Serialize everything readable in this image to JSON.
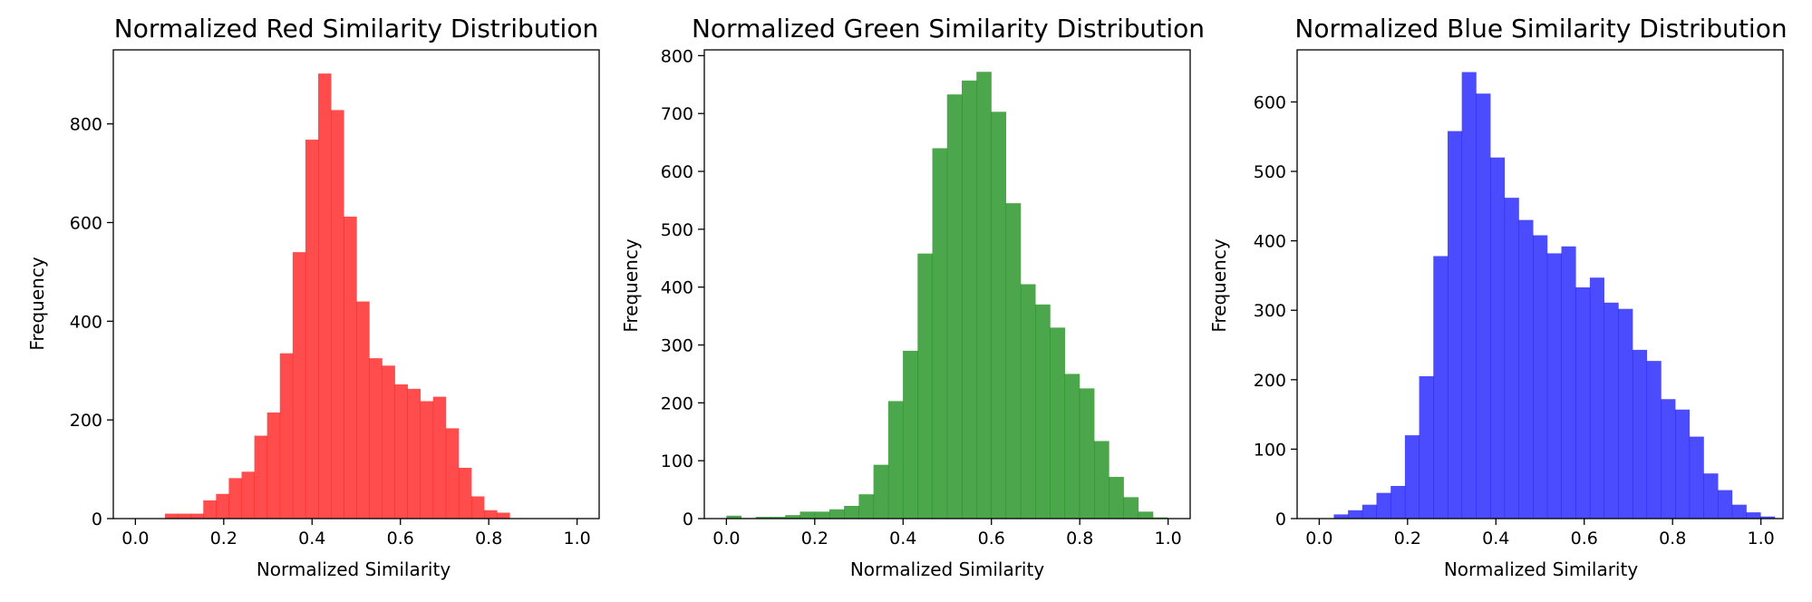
{
  "chart_data": [
    {
      "type": "bar",
      "title": "Normalized Red Similarity Distribution",
      "xlabel": "Normalized Similarity",
      "ylabel": "Frequency",
      "color": "#ff0000",
      "alpha": 0.7,
      "xlim": [
        -0.05,
        1.05
      ],
      "ylim": [
        0,
        950
      ],
      "xticks": [
        0.0,
        0.2,
        0.4,
        0.6,
        0.8,
        1.0
      ],
      "xtick_labels": [
        "0.0",
        "0.2",
        "0.4",
        "0.6",
        "0.8",
        "1.0"
      ],
      "yticks": [
        0,
        200,
        400,
        600,
        800
      ],
      "ytick_labels": [
        "0",
        "200",
        "400",
        "600",
        "800"
      ],
      "bin_start": 0.067,
      "bin_width": 0.0289,
      "values": [
        10,
        10,
        10,
        37,
        50,
        82,
        95,
        168,
        215,
        335,
        540,
        768,
        902,
        828,
        612,
        440,
        325,
        310,
        272,
        263,
        238,
        247,
        183,
        103,
        45,
        17,
        12
      ]
    },
    {
      "type": "bar",
      "title": "Normalized Green Similarity Distribution",
      "xlabel": "Normalized Similarity",
      "ylabel": "Frequency",
      "color": "#008000",
      "alpha": 0.7,
      "xlim": [
        -0.05,
        1.05
      ],
      "ylim": [
        0,
        810
      ],
      "xticks": [
        0.0,
        0.2,
        0.4,
        0.6,
        0.8,
        1.0
      ],
      "xtick_labels": [
        "0.0",
        "0.2",
        "0.4",
        "0.6",
        "0.8",
        "1.0"
      ],
      "yticks": [
        0,
        100,
        200,
        300,
        400,
        500,
        600,
        700,
        800
      ],
      "ytick_labels": [
        "0",
        "100",
        "200",
        "300",
        "400",
        "500",
        "600",
        "700",
        "800"
      ],
      "bin_start": 0.0,
      "bin_width": 0.0333,
      "values": [
        5,
        1,
        3,
        3,
        6,
        12,
        12,
        16,
        22,
        42,
        93,
        203,
        290,
        458,
        640,
        733,
        757,
        772,
        703,
        545,
        405,
        370,
        330,
        250,
        225,
        134,
        72,
        37,
        12,
        2
      ]
    },
    {
      "type": "bar",
      "title": "Normalized Blue Similarity Distribution",
      "xlabel": "Normalized Similarity",
      "ylabel": "Frequency",
      "color": "#0000ff",
      "alpha": 0.7,
      "xlim": [
        -0.05,
        1.05
      ],
      "ylim": [
        0,
        675
      ],
      "xticks": [
        0.0,
        0.2,
        0.4,
        0.6,
        0.8,
        1.0
      ],
      "xtick_labels": [
        "0.0",
        "0.2",
        "0.4",
        "0.6",
        "0.8",
        "1.0"
      ],
      "yticks": [
        0,
        100,
        200,
        300,
        400,
        500,
        600
      ],
      "ytick_labels": [
        "0",
        "100",
        "200",
        "300",
        "400",
        "500",
        "600"
      ],
      "bin_start": 0.033,
      "bin_width": 0.0322,
      "values": [
        6,
        12,
        20,
        37,
        47,
        120,
        205,
        378,
        558,
        643,
        612,
        520,
        462,
        430,
        408,
        382,
        392,
        333,
        347,
        311,
        302,
        243,
        227,
        172,
        157,
        118,
        65,
        41,
        20,
        9,
        3
      ]
    }
  ]
}
